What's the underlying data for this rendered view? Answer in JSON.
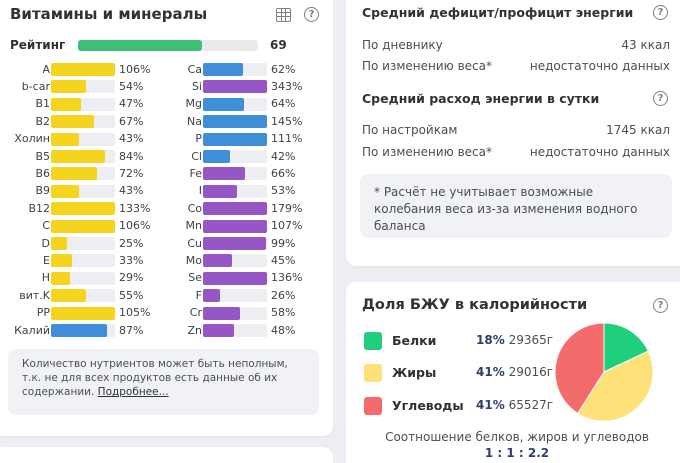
{
  "vitamins": {
    "title": "Витамины и минералы",
    "rating_label": "Рейтинг",
    "rating_value": "69",
    "rating_fraction": 0.69,
    "left": [
      {
        "label": "A",
        "pct": "106%",
        "fill": 1.0,
        "color": "yellow"
      },
      {
        "label": "b-car",
        "pct": "54%",
        "fill": 0.54,
        "color": "yellow"
      },
      {
        "label": "B1",
        "pct": "47%",
        "fill": 0.47,
        "color": "yellow"
      },
      {
        "label": "B2",
        "pct": "67%",
        "fill": 0.67,
        "color": "yellow"
      },
      {
        "label": "Холин",
        "pct": "43%",
        "fill": 0.43,
        "color": "yellow"
      },
      {
        "label": "B5",
        "pct": "84%",
        "fill": 0.84,
        "color": "yellow"
      },
      {
        "label": "B6",
        "pct": "72%",
        "fill": 0.72,
        "color": "yellow"
      },
      {
        "label": "B9",
        "pct": "43%",
        "fill": 0.43,
        "color": "yellow"
      },
      {
        "label": "B12",
        "pct": "133%",
        "fill": 1.0,
        "color": "yellow"
      },
      {
        "label": "C",
        "pct": "106%",
        "fill": 1.0,
        "color": "yellow"
      },
      {
        "label": "D",
        "pct": "25%",
        "fill": 0.25,
        "color": "yellow"
      },
      {
        "label": "E",
        "pct": "33%",
        "fill": 0.33,
        "color": "yellow"
      },
      {
        "label": "H",
        "pct": "29%",
        "fill": 0.29,
        "color": "yellow"
      },
      {
        "label": "вит.K",
        "pct": "55%",
        "fill": 0.55,
        "color": "yellow"
      },
      {
        "label": "PP",
        "pct": "105%",
        "fill": 1.0,
        "color": "yellow"
      },
      {
        "label": "Калий",
        "pct": "87%",
        "fill": 0.87,
        "color": "blue"
      }
    ],
    "right": [
      {
        "label": "Ca",
        "pct": "62%",
        "fill": 0.62,
        "color": "blue"
      },
      {
        "label": "Si",
        "pct": "343%",
        "fill": 1.0,
        "color": "purple"
      },
      {
        "label": "Mg",
        "pct": "64%",
        "fill": 0.64,
        "color": "blue"
      },
      {
        "label": "Na",
        "pct": "145%",
        "fill": 1.0,
        "color": "blue"
      },
      {
        "label": "P",
        "pct": "111%",
        "fill": 1.0,
        "color": "blue"
      },
      {
        "label": "Cl",
        "pct": "42%",
        "fill": 0.42,
        "color": "blue"
      },
      {
        "label": "Fe",
        "pct": "66%",
        "fill": 0.66,
        "color": "purple"
      },
      {
        "label": "I",
        "pct": "53%",
        "fill": 0.53,
        "color": "purple"
      },
      {
        "label": "Co",
        "pct": "179%",
        "fill": 1.0,
        "color": "purple"
      },
      {
        "label": "Mn",
        "pct": "107%",
        "fill": 1.0,
        "color": "purple"
      },
      {
        "label": "Cu",
        "pct": "99%",
        "fill": 0.99,
        "color": "purple"
      },
      {
        "label": "Mo",
        "pct": "45%",
        "fill": 0.45,
        "color": "purple"
      },
      {
        "label": "Se",
        "pct": "136%",
        "fill": 1.0,
        "color": "purple"
      },
      {
        "label": "F",
        "pct": "26%",
        "fill": 0.26,
        "color": "purple"
      },
      {
        "label": "Cr",
        "pct": "58%",
        "fill": 0.58,
        "color": "purple"
      },
      {
        "label": "Zn",
        "pct": "48%",
        "fill": 0.48,
        "color": "purple"
      }
    ],
    "note_text": "Количество нутриентов может быть неполным, т.к. не для всех продуктов есть данные об их содержании. ",
    "note_link": "Подробнее..."
  },
  "energy": {
    "deficit_title": "Средний дефицит/профицит энергии",
    "deficit_rows": [
      {
        "label": "По дневнику",
        "value": "43 ккал"
      },
      {
        "label": "По изменению веса*",
        "value": "недостаточно данных"
      }
    ],
    "expense_title": "Средний расход энергии в сутки",
    "expense_rows": [
      {
        "label": "По настройкам",
        "value": "1745 ккал"
      },
      {
        "label": "По изменению веса*",
        "value": "недостаточно данных"
      }
    ],
    "footnote": "* Расчёт не учитывает возможные колебания веса из-за изменения водного баланса"
  },
  "bju": {
    "title": "Доля БЖУ в калорийности",
    "items": [
      {
        "name": "Белки",
        "percent": "18%",
        "grams": "29365г",
        "color": "#1fcf7b"
      },
      {
        "name": "Жиры",
        "percent": "41%",
        "grams": "29016г",
        "color": "#ffe17a"
      },
      {
        "name": "Углеводы",
        "percent": "41%",
        "grams": "65527г",
        "color": "#f46b6b"
      }
    ],
    "ratio_label": "Соотношение белков, жиров и углеводов",
    "ratio_value": "1 : 1 : 2.2"
  },
  "chart_data": {
    "type": "pie",
    "categories": [
      "Белки",
      "Жиры",
      "Углеводы"
    ],
    "values": [
      18,
      41,
      41
    ],
    "colors": [
      "#1fcf7b",
      "#ffe17a",
      "#f46b6b"
    ]
  },
  "colors": {
    "yellow": "#f5d41f",
    "blue": "#3f8fd8",
    "purple": "#9656c4",
    "rating_green": "#3ec177"
  },
  "icons": [
    "table-icon",
    "help-icon"
  ]
}
